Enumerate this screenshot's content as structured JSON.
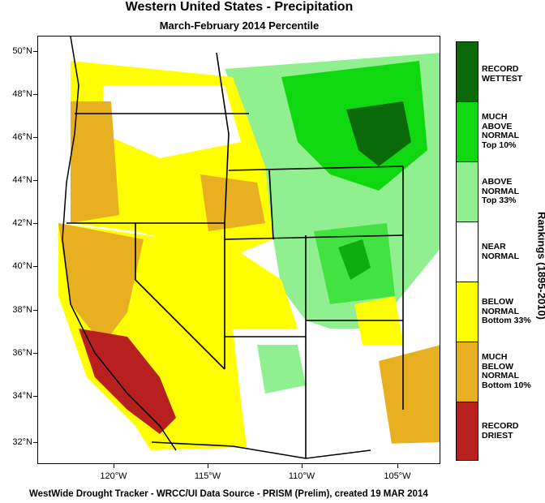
{
  "title": "Western United States - Precipitation",
  "subtitle": "March-February 2014 Percentile",
  "footer": "WestWide Drought Tracker - WRCC/UI  Data Source - PRISM (Prelim), created 19 MAR 2014",
  "y_axis_labels": [
    "50°N",
    "48°N",
    "46°N",
    "44°N",
    "42°N",
    "40°N",
    "38°N",
    "36°N",
    "34°N",
    "32°N"
  ],
  "x_axis_labels": [
    "120°W",
    "115°W",
    "110°W",
    "105°W"
  ],
  "legend": {
    "title": "Rankings (1895-2010)",
    "items": [
      {
        "label_lines": [
          "RECORD",
          "WETTEST"
        ],
        "color": "#0a6a0a"
      },
      {
        "label_lines": [
          "MUCH",
          "ABOVE",
          "NORMAL",
          "Top 10%"
        ],
        "color": "#10d810"
      },
      {
        "label_lines": [
          "ABOVE",
          "NORMAL",
          "Top 33%"
        ],
        "color": "#90f090"
      },
      {
        "label_lines": [
          "NEAR",
          "NORMAL"
        ],
        "color": "#ffffff"
      },
      {
        "label_lines": [
          "BELOW",
          "NORMAL",
          "Bottom 33%"
        ],
        "color": "#ffff00"
      },
      {
        "label_lines": [
          "MUCH",
          "BELOW",
          "NORMAL",
          "Bottom 10%"
        ],
        "color": "#e8b020"
      },
      {
        "label_lines": [
          "RECORD",
          "DRIEST"
        ],
        "color": "#b82020"
      }
    ]
  },
  "regions": {
    "record_wettest": "#0a6a0a",
    "much_above": "#10d810",
    "above": "#90f090",
    "near": "#ffffff",
    "below": "#ffff00",
    "much_below": "#e8b020",
    "record_driest": "#b82020"
  }
}
